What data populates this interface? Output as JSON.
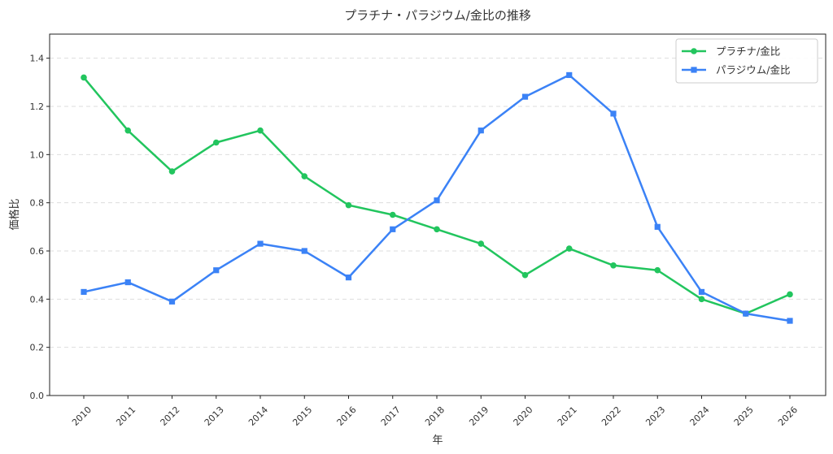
{
  "chart_data": {
    "type": "line",
    "title": "プラチナ・パラジウム/金比の推移",
    "xlabel": "年",
    "ylabel": "価格比",
    "categories": [
      "2010",
      "2011",
      "2012",
      "2013",
      "2014",
      "2015",
      "2016",
      "2017",
      "2018",
      "2019",
      "2020",
      "2021",
      "2022",
      "2023",
      "2024",
      "2025",
      "2026"
    ],
    "ylim": [
      0,
      1.5
    ],
    "yticks": [
      "0.0",
      "0.2",
      "0.4",
      "0.6",
      "0.8",
      "1.0",
      "1.2",
      "1.4"
    ],
    "grid": "horizontal-dashed",
    "legend_position": "top-right",
    "series": [
      {
        "name": "プラチナ/金比",
        "color": "#22c55e",
        "marker": "circle",
        "values": [
          1.32,
          1.1,
          0.93,
          1.05,
          1.1,
          0.91,
          0.79,
          0.75,
          0.69,
          0.63,
          0.5,
          0.61,
          0.54,
          0.52,
          0.4,
          0.34,
          0.42
        ]
      },
      {
        "name": "パラジウム/金比",
        "color": "#3b82f6",
        "marker": "square",
        "values": [
          0.43,
          0.47,
          0.39,
          0.52,
          0.63,
          0.6,
          0.49,
          0.69,
          0.81,
          1.1,
          1.24,
          1.33,
          1.17,
          0.7,
          0.43,
          0.34,
          0.31
        ]
      }
    ]
  }
}
